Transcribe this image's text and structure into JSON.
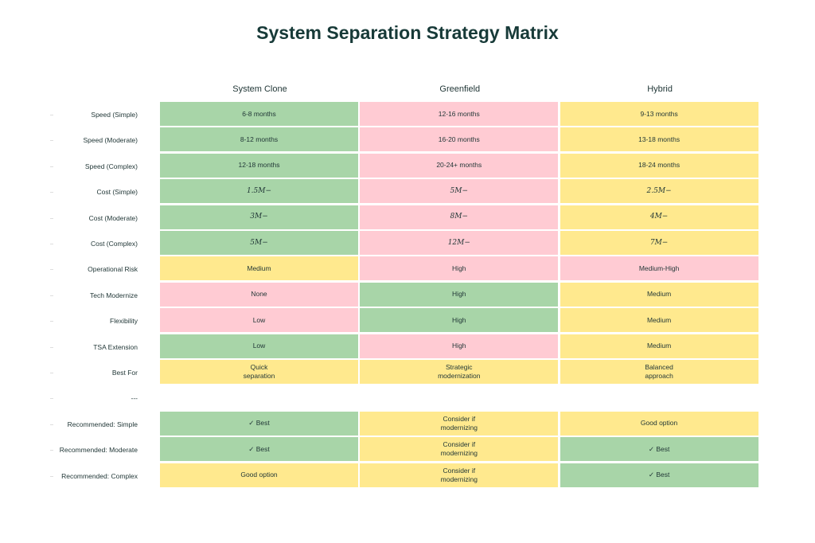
{
  "chart_data": {
    "type": "heatmap",
    "title": "System Separation Strategy Matrix",
    "columns": [
      "System Clone",
      "Greenfield",
      "Hybrid"
    ],
    "colors": {
      "good": "#a8d5a8",
      "bad": "#ffcbd3",
      "neutral": "#ffe98e"
    },
    "rows": [
      {
        "label": "Speed (Simple)",
        "cells": [
          [
            "6-8 months",
            "good"
          ],
          [
            "12-16 months",
            "bad"
          ],
          [
            "9-13 months",
            "neutral"
          ]
        ]
      },
      {
        "label": "Speed (Moderate)",
        "cells": [
          [
            "8-12 months",
            "good"
          ],
          [
            "16-20 months",
            "bad"
          ],
          [
            "13-18 months",
            "neutral"
          ]
        ]
      },
      {
        "label": "Speed (Complex)",
        "cells": [
          [
            "12-18 months",
            "good"
          ],
          [
            "20-24+ months",
            "bad"
          ],
          [
            "18-24 months",
            "neutral"
          ]
        ]
      },
      {
        "label": "Cost (Simple)",
        "math": true,
        "cells": [
          [
            "1.5M−",
            "good"
          ],
          [
            "5M−",
            "bad"
          ],
          [
            "2.5M−",
            "neutral"
          ]
        ]
      },
      {
        "label": "Cost (Moderate)",
        "math": true,
        "cells": [
          [
            "3M−",
            "good"
          ],
          [
            "8M−",
            "bad"
          ],
          [
            "4M−",
            "neutral"
          ]
        ]
      },
      {
        "label": "Cost (Complex)",
        "math": true,
        "cells": [
          [
            "5M−",
            "good"
          ],
          [
            "12M−",
            "bad"
          ],
          [
            "7M−",
            "neutral"
          ]
        ]
      },
      {
        "label": "Operational Risk",
        "cells": [
          [
            "Medium",
            "neutral"
          ],
          [
            "High",
            "bad"
          ],
          [
            "Medium-High",
            "bad"
          ]
        ]
      },
      {
        "label": "Tech Modernize",
        "cells": [
          [
            "None",
            "bad"
          ],
          [
            "High",
            "good"
          ],
          [
            "Medium",
            "neutral"
          ]
        ]
      },
      {
        "label": "Flexibility",
        "cells": [
          [
            "Low",
            "bad"
          ],
          [
            "High",
            "good"
          ],
          [
            "Medium",
            "neutral"
          ]
        ]
      },
      {
        "label": "TSA Extension",
        "cells": [
          [
            "Low",
            "good"
          ],
          [
            "High",
            "bad"
          ],
          [
            "Medium",
            "neutral"
          ]
        ]
      },
      {
        "label": "Best For",
        "cells": [
          [
            "Quick\nseparation",
            "neutral"
          ],
          [
            "Strategic\nmodernization",
            "neutral"
          ],
          [
            "Balanced\napproach",
            "neutral"
          ]
        ]
      },
      {
        "label": "---",
        "cells": []
      },
      {
        "label": "Recommended: Simple",
        "cells": [
          [
            "✓ Best",
            "good"
          ],
          [
            "Consider if\nmodernizing",
            "neutral"
          ],
          [
            "Good option",
            "neutral"
          ]
        ]
      },
      {
        "label": "Recommended: Moderate",
        "cells": [
          [
            "✓ Best",
            "good"
          ],
          [
            "Consider if\nmodernizing",
            "neutral"
          ],
          [
            "✓ Best",
            "good"
          ]
        ]
      },
      {
        "label": "Recommended: Complex",
        "cells": [
          [
            "Good option",
            "neutral"
          ],
          [
            "Consider if\nmodernizing",
            "neutral"
          ],
          [
            "✓ Best",
            "good"
          ]
        ]
      }
    ]
  }
}
